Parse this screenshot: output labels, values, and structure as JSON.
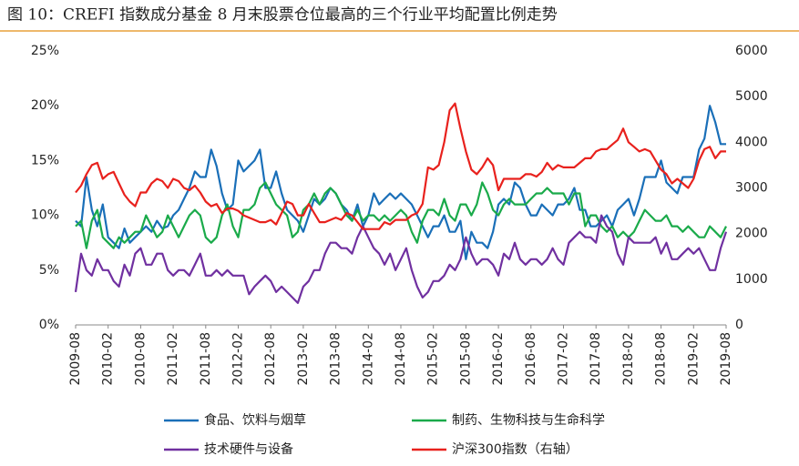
{
  "chart_data": {
    "type": "line",
    "title": "图 10：CREFI 指数成分基金 8 月末股票仓位最高的三个行业平均配置比例走势",
    "categories": [
      "2009-08",
      null,
      null,
      null,
      null,
      null,
      "2010-02",
      null,
      null,
      null,
      null,
      null,
      "2010-08",
      null,
      null,
      null,
      null,
      null,
      "2011-02",
      null,
      null,
      null,
      null,
      null,
      "2011-08",
      null,
      null,
      null,
      null,
      null,
      "2012-02",
      null,
      null,
      null,
      null,
      null,
      "2012-08",
      null,
      null,
      null,
      null,
      null,
      "2013-02",
      null,
      null,
      null,
      null,
      null,
      "2013-08",
      null,
      null,
      null,
      null,
      null,
      "2014-02",
      null,
      null,
      null,
      null,
      null,
      "2014-08",
      null,
      null,
      null,
      null,
      null,
      "2015-02",
      null,
      null,
      null,
      null,
      null,
      "2015-08",
      null,
      null,
      null,
      null,
      null,
      "2016-02",
      null,
      null,
      null,
      null,
      null,
      "2016-08",
      null,
      null,
      null,
      null,
      null,
      "2017-02",
      null,
      null,
      null,
      null,
      null,
      "2017-08",
      null,
      null,
      null,
      null,
      null,
      "2018-02",
      null,
      null,
      null,
      null,
      null,
      "2018-08",
      null,
      null,
      null,
      null,
      null,
      "2019-02",
      null,
      null,
      null,
      null,
      null,
      "2019-08"
    ],
    "series": [
      {
        "name": "食品、饮料与烟草",
        "color": "#1a6fb8",
        "values": [
          9.5,
          9.0,
          13.5,
          10.5,
          9.0,
          11.0,
          8.0,
          7.5,
          7.0,
          8.8,
          7.5,
          8.0,
          8.5,
          9.0,
          8.5,
          9.5,
          8.8,
          9.0,
          10.0,
          10.5,
          11.5,
          12.5,
          14.0,
          13.5,
          13.5,
          16.0,
          14.5,
          12.0,
          10.5,
          11.0,
          15.0,
          14.0,
          14.5,
          15.0,
          16.0,
          12.5,
          12.5,
          14.0,
          12.0,
          10.5,
          10.0,
          9.5,
          8.5,
          10.0,
          11.5,
          11.0,
          11.5,
          12.5,
          12.0,
          11.0,
          10.5,
          9.5,
          11.0,
          9.0,
          10.0,
          12.0,
          11.0,
          11.5,
          12.0,
          11.5,
          12.0,
          11.5,
          11.0,
          10.0,
          9.0,
          8.0,
          9.0,
          9.0,
          10.0,
          8.5,
          8.5,
          9.5,
          6.0,
          8.5,
          7.5,
          7.5,
          7.0,
          8.5,
          11.0,
          11.5,
          11.0,
          13.0,
          12.5,
          11.0,
          10.0,
          10.0,
          11.0,
          10.5,
          10.0,
          11.0,
          11.0,
          11.5,
          12.5,
          10.5,
          10.5,
          9.0,
          9.0,
          9.5,
          10.0,
          9.0,
          10.5,
          11.0,
          11.5,
          10.0,
          11.5,
          13.5,
          13.5,
          13.5,
          15.0,
          13.0,
          12.5,
          12.0,
          13.5,
          13.5,
          13.5,
          16.0,
          17.0,
          20.0,
          18.5,
          16.5,
          16.5
        ]
      },
      {
        "name": "制药、生物科技与生命科学",
        "color": "#1aaa4a",
        "values": [
          9.0,
          9.5,
          7.0,
          9.5,
          10.5,
          8.0,
          7.5,
          7.0,
          8.0,
          7.5,
          8.0,
          8.5,
          8.5,
          10.0,
          9.0,
          8.0,
          8.5,
          10.0,
          9.0,
          8.0,
          9.0,
          10.0,
          10.5,
          10.0,
          8.0,
          7.5,
          8.0,
          10.0,
          11.0,
          9.0,
          8.0,
          10.5,
          10.5,
          11.0,
          12.5,
          13.0,
          12.0,
          11.0,
          10.5,
          10.0,
          8.0,
          8.5,
          10.5,
          11.0,
          12.0,
          11.0,
          12.0,
          12.5,
          12.0,
          11.0,
          10.0,
          9.5,
          10.5,
          9.5,
          10.0,
          10.0,
          9.5,
          10.0,
          9.5,
          10.0,
          10.5,
          10.0,
          8.5,
          7.5,
          9.5,
          10.5,
          10.5,
          10.0,
          11.5,
          10.0,
          9.5,
          11.0,
          11.0,
          10.0,
          11.0,
          13.0,
          12.0,
          10.5,
          10.0,
          11.0,
          11.5,
          11.0,
          11.0,
          11.0,
          11.5,
          12.0,
          12.0,
          12.5,
          12.0,
          12.0,
          12.0,
          11.0,
          12.0,
          12.0,
          9.0,
          10.0,
          10.0,
          9.0,
          8.5,
          9.0,
          8.0,
          8.5,
          8.0,
          8.5,
          9.5,
          10.5,
          10.0,
          9.5,
          9.5,
          10.0,
          9.0,
          9.0,
          8.5,
          9.0,
          8.5,
          8.0,
          8.0,
          9.0,
          8.5,
          8.0,
          9.0
        ]
      },
      {
        "name": "技术硬件与设备",
        "color": "#7030a0",
        "values": [
          3.0,
          6.5,
          5.0,
          4.5,
          6.0,
          5.0,
          5.0,
          4.0,
          3.5,
          5.5,
          4.5,
          6.5,
          7.0,
          5.5,
          5.5,
          6.5,
          6.5,
          5.0,
          4.5,
          5.0,
          5.0,
          4.5,
          5.5,
          6.5,
          4.5,
          4.5,
          5.0,
          4.5,
          5.0,
          4.5,
          4.5,
          4.5,
          2.8,
          3.5,
          4.0,
          4.5,
          4.0,
          3.0,
          3.5,
          3.0,
          2.5,
          2.0,
          3.5,
          4.0,
          5.0,
          5.0,
          6.5,
          7.5,
          7.5,
          7.0,
          7.0,
          6.5,
          8.0,
          9.0,
          8.0,
          7.0,
          6.5,
          5.5,
          6.5,
          5.0,
          6.0,
          7.0,
          5.0,
          3.5,
          2.5,
          3.0,
          4.0,
          4.0,
          4.5,
          5.5,
          5.0,
          6.0,
          8.0,
          6.5,
          5.5,
          6.0,
          6.0,
          5.5,
          4.5,
          6.5,
          6.0,
          7.5,
          6.0,
          5.5,
          6.0,
          6.0,
          5.5,
          6.0,
          7.0,
          6.0,
          5.5,
          7.5,
          8.0,
          8.5,
          8.0,
          8.0,
          7.5,
          10.0,
          9.0,
          8.5,
          6.5,
          5.5,
          8.0,
          7.5,
          7.5,
          7.5,
          7.5,
          8.0,
          6.5,
          7.5,
          6.0,
          6.0,
          6.5,
          7.0,
          6.5,
          7.0,
          6.0,
          5.0,
          5.0,
          7.0,
          8.5
        ]
      },
      {
        "name": "沪深300指数（右轴）",
        "color": "#e8211d",
        "axis": "y2",
        "values": [
          2900,
          3050,
          3300,
          3500,
          3550,
          3200,
          3300,
          3350,
          3100,
          2850,
          2700,
          2600,
          2900,
          2900,
          3100,
          3200,
          3150,
          3000,
          3200,
          3150,
          3000,
          2950,
          3050,
          2900,
          2700,
          2600,
          2650,
          2450,
          2550,
          2550,
          2500,
          2400,
          2350,
          2300,
          2250,
          2250,
          2300,
          2200,
          2450,
          2700,
          2650,
          2400,
          2400,
          2650,
          2450,
          2250,
          2250,
          2300,
          2350,
          2300,
          2450,
          2400,
          2250,
          2100,
          2100,
          2100,
          2100,
          2250,
          2200,
          2300,
          2300,
          2300,
          2400,
          2450,
          2650,
          3450,
          3400,
          3500,
          4000,
          4700,
          4850,
          4300,
          3800,
          3400,
          3300,
          3450,
          3650,
          3500,
          2950,
          3200,
          3200,
          3200,
          3200,
          3300,
          3300,
          3250,
          3350,
          3550,
          3400,
          3500,
          3450,
          3450,
          3450,
          3550,
          3650,
          3650,
          3800,
          3850,
          3850,
          3950,
          4050,
          4300,
          4000,
          3900,
          3800,
          3850,
          3800,
          3600,
          3400,
          3300,
          3100,
          3200,
          3100,
          3000,
          3200,
          3600,
          3850,
          3900,
          3650,
          3800,
          3800
        ]
      }
    ],
    "ylim": [
      0,
      25
    ],
    "yticks": [
      {
        "value": 0,
        "label": "0%"
      },
      {
        "value": 5,
        "label": "5%"
      },
      {
        "value": 10,
        "label": "10%"
      },
      {
        "value": 15,
        "label": "15%"
      },
      {
        "value": 20,
        "label": "20%"
      },
      {
        "value": 25,
        "label": "25%"
      }
    ],
    "y2lim": [
      0,
      6000
    ],
    "y2ticks": [
      0,
      1000,
      2000,
      3000,
      4000,
      5000,
      6000
    ],
    "legend": "bottom"
  }
}
